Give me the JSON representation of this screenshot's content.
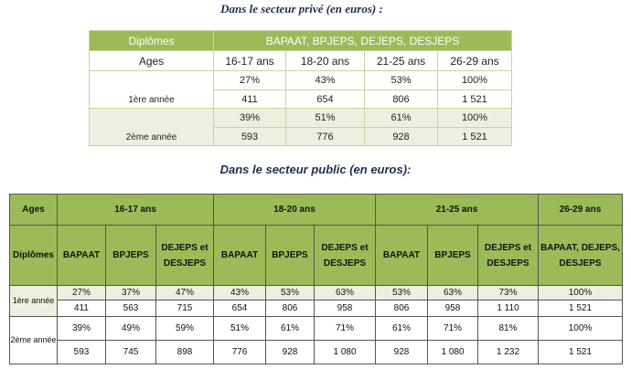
{
  "private": {
    "title": "Dans le secteur privé (en euros) :",
    "diplomas_label": "Diplômes",
    "diplomas": "BAPAAT, BPJEPS, DEJEPS, DESJEPS",
    "ages_label": "Ages",
    "ages": [
      "16-17 ans",
      "18-20 ans",
      "21-25 ans",
      "26-29 ans"
    ],
    "rows": [
      {
        "label": "1ère année",
        "percents": [
          "27%",
          "43%",
          "53%",
          "100%"
        ],
        "amounts": [
          "411",
          "654",
          "806",
          "1 521"
        ]
      },
      {
        "label": "2ème année",
        "percents": [
          "39%",
          "51%",
          "61%",
          "100%"
        ],
        "amounts": [
          "593",
          "776",
          "928",
          "1 521"
        ]
      }
    ]
  },
  "public": {
    "title": "Dans le secteur public (en euros):",
    "ages_label": "Ages",
    "ages": [
      "16-17 ans",
      "18-20 ans",
      "21-25 ans",
      "26-29 ans"
    ],
    "diplomas_label": "Diplômes",
    "diplomas": [
      "BAPAAT",
      "BPJEPS",
      "DEJEPS et DESJEPS",
      "BAPAAT",
      "BPJEPS",
      "DEJEPS et DESJEPS",
      "BAPAAT",
      "BPJEPS",
      "DEJEPS et DESJEPS",
      "BAPAAT, DEJEPS, DESJEPS"
    ],
    "rows": [
      {
        "label": "1ère année",
        "percents": [
          "27%",
          "37%",
          "47%",
          "43%",
          "53%",
          "63%",
          "53%",
          "63%",
          "73%",
          "100%"
        ],
        "amounts": [
          "411",
          "563",
          "715",
          "654",
          "806",
          "958",
          "806",
          "958",
          "1 110",
          "1 521"
        ]
      },
      {
        "label": "2ème année",
        "percents": [
          "39%",
          "49%",
          "59%",
          "51%",
          "61%",
          "71%",
          "61%",
          "71%",
          "81%",
          "100%"
        ],
        "amounts": [
          "593",
          "745",
          "898",
          "776",
          "928",
          "1 080",
          "928",
          "1 080",
          "1 232",
          "1 521"
        ]
      }
    ]
  }
}
